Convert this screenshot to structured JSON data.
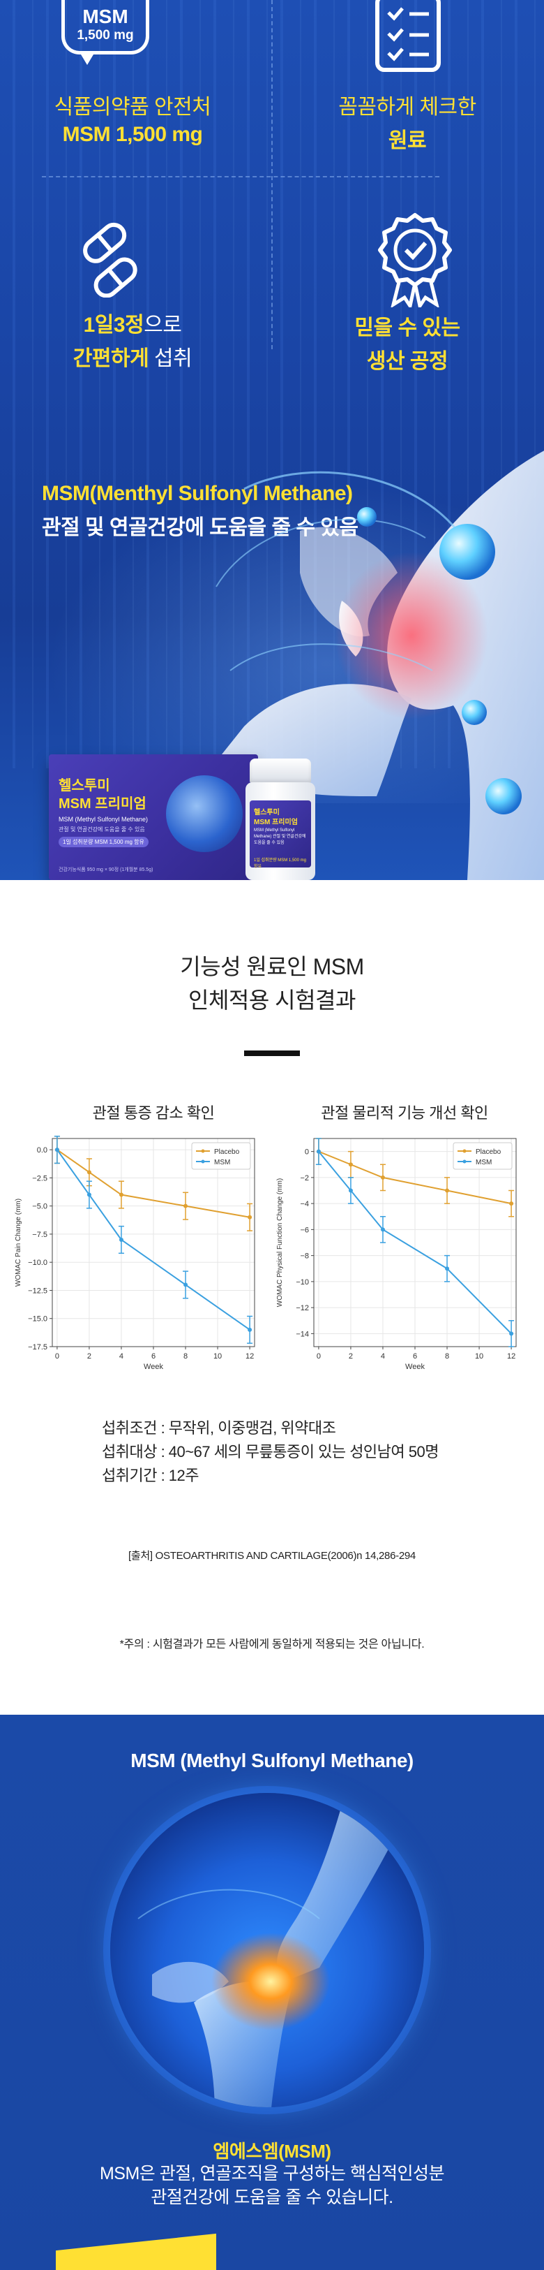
{
  "hero": {
    "bubble": {
      "main": "MSM",
      "sub": "1,500 mg"
    },
    "features": [
      {
        "line1": "식품의약품 안전처",
        "line2": "MSM 1,500 mg",
        "icon": "speech-bubble-icon"
      },
      {
        "line1": "꼼꼼하게 체크한",
        "line2": "원료",
        "icon": "checklist-icon"
      },
      {
        "line1_bold": "1일3정",
        "line1_rest": "으로",
        "line2_bold": "간편하게",
        "line2_rest": " 섭취",
        "icon": "capsule-icon"
      },
      {
        "line1": "믿을 수 있는",
        "line2": "생산 공정",
        "icon": "badge-check-icon"
      }
    ],
    "title_line1": "MSM(Menthyl Sulfonyl Methane)",
    "title_line2": "관절 및 연골건강에 도움을 줄 수 있음",
    "product": {
      "box_line1": "헬스투미",
      "box_line2": "MSM 프리미엄",
      "box_line3": "MSM (Methyl Sulfonyl Methane)",
      "box_line4": "관절 및 연골건강에 도움을 줄 수 있음",
      "box_line5": "1일 섭취분량 MSM 1,500 mg 함유",
      "box_line6": "건강기능식품 950 mg × 90정 (1개월분 85.5g)",
      "bottle_line1": "헬스투미",
      "bottle_line2": "MSM 프리미엄",
      "bottle_line3": "MSM (Methyl Sulfonyl Methane) 관절 및 연골건강에 도움을 줄 수 있음",
      "bottle_line4": "1일 섭취분량 MSM 1,500 mg 함유"
    }
  },
  "clinical": {
    "title_line1": "기능성 원료인 MSM",
    "title_line2": "인체적용 시험결과",
    "conditions": [
      "섭취조건 : 무작위, 이중맹검, 위약대조",
      "섭취대상 : 40~67 세의 무릎통증이 있는 성인남여 50명",
      "섭취기간 : 12주"
    ],
    "source": "[출처] OSTEOARTHRITIS AND CARTILAGE(2006)n 14,286-294",
    "warning": "*주의 : 시험결과가 모든 사람에게 동일하게 적용되는 것은 아닙니다."
  },
  "chart_data": [
    {
      "type": "line",
      "title": "관절 통증 감소 확인",
      "xlabel": "Week",
      "ylabel": "WOMAC Pain Change (mm)",
      "x": [
        0,
        2,
        4,
        8,
        12
      ],
      "xticks": [
        0,
        2,
        4,
        6,
        8,
        10,
        12
      ],
      "yticks": [
        0.0,
        -2.5,
        -5.0,
        -7.5,
        -10.0,
        -12.5,
        -15.0,
        -17.5
      ],
      "ytick_labels": [
        "0.0",
        "−2.5",
        "−5.0",
        "−7.5",
        "−10.0",
        "−12.5",
        "−15.0",
        "−17.5"
      ],
      "ylim": [
        -17.5,
        1
      ],
      "xlim": [
        -0.3,
        12.3
      ],
      "grid": true,
      "legend": "top-right",
      "series": [
        {
          "name": "Placebo",
          "color": "#e0a030",
          "values": [
            0,
            -2,
            -4,
            -5,
            -6
          ],
          "err": [
            1.2,
            1.2,
            1.2,
            1.2,
            1.2
          ]
        },
        {
          "name": "MSM",
          "color": "#3aa0e0",
          "values": [
            0,
            -4,
            -8,
            -12,
            -16
          ],
          "err": [
            1.2,
            1.2,
            1.2,
            1.2,
            1.2
          ]
        }
      ]
    },
    {
      "type": "line",
      "title": "관절 물리적 기능 개선 확인",
      "xlabel": "Week",
      "ylabel": "WOMAC Physical Function Change (mm)",
      "x": [
        0,
        2,
        4,
        8,
        12
      ],
      "xticks": [
        0,
        2,
        4,
        6,
        8,
        10,
        12
      ],
      "yticks": [
        0,
        -2,
        -4,
        -6,
        -8,
        -10,
        -12,
        -14
      ],
      "ytick_labels": [
        "0",
        "−2",
        "−4",
        "−6",
        "−8",
        "−10",
        "−12",
        "−14"
      ],
      "ylim": [
        -15,
        1
      ],
      "xlim": [
        -0.3,
        12.3
      ],
      "grid": true,
      "legend": "top-right",
      "series": [
        {
          "name": "Placebo",
          "color": "#e0a030",
          "values": [
            0,
            -1,
            -2,
            -3,
            -4
          ],
          "err": [
            1,
            1,
            1,
            1,
            1
          ]
        },
        {
          "name": "MSM",
          "color": "#3aa0e0",
          "values": [
            0,
            -3,
            -6,
            -9,
            -14
          ],
          "err": [
            1,
            1,
            1,
            1,
            1
          ]
        }
      ]
    }
  ],
  "msm": {
    "title": "MSM (Methyl Sulfonyl Methane)",
    "name": "엠에스엠(MSM)",
    "desc_line1": "MSM은 관절, 연골조직을 구성하는 핵심적인성분",
    "desc_line2": "관절건강에 도움을 줄 수 있습니다."
  },
  "colors": {
    "accent_yellow": "#ffe033",
    "hero_blue": "#1e4fb4"
  }
}
